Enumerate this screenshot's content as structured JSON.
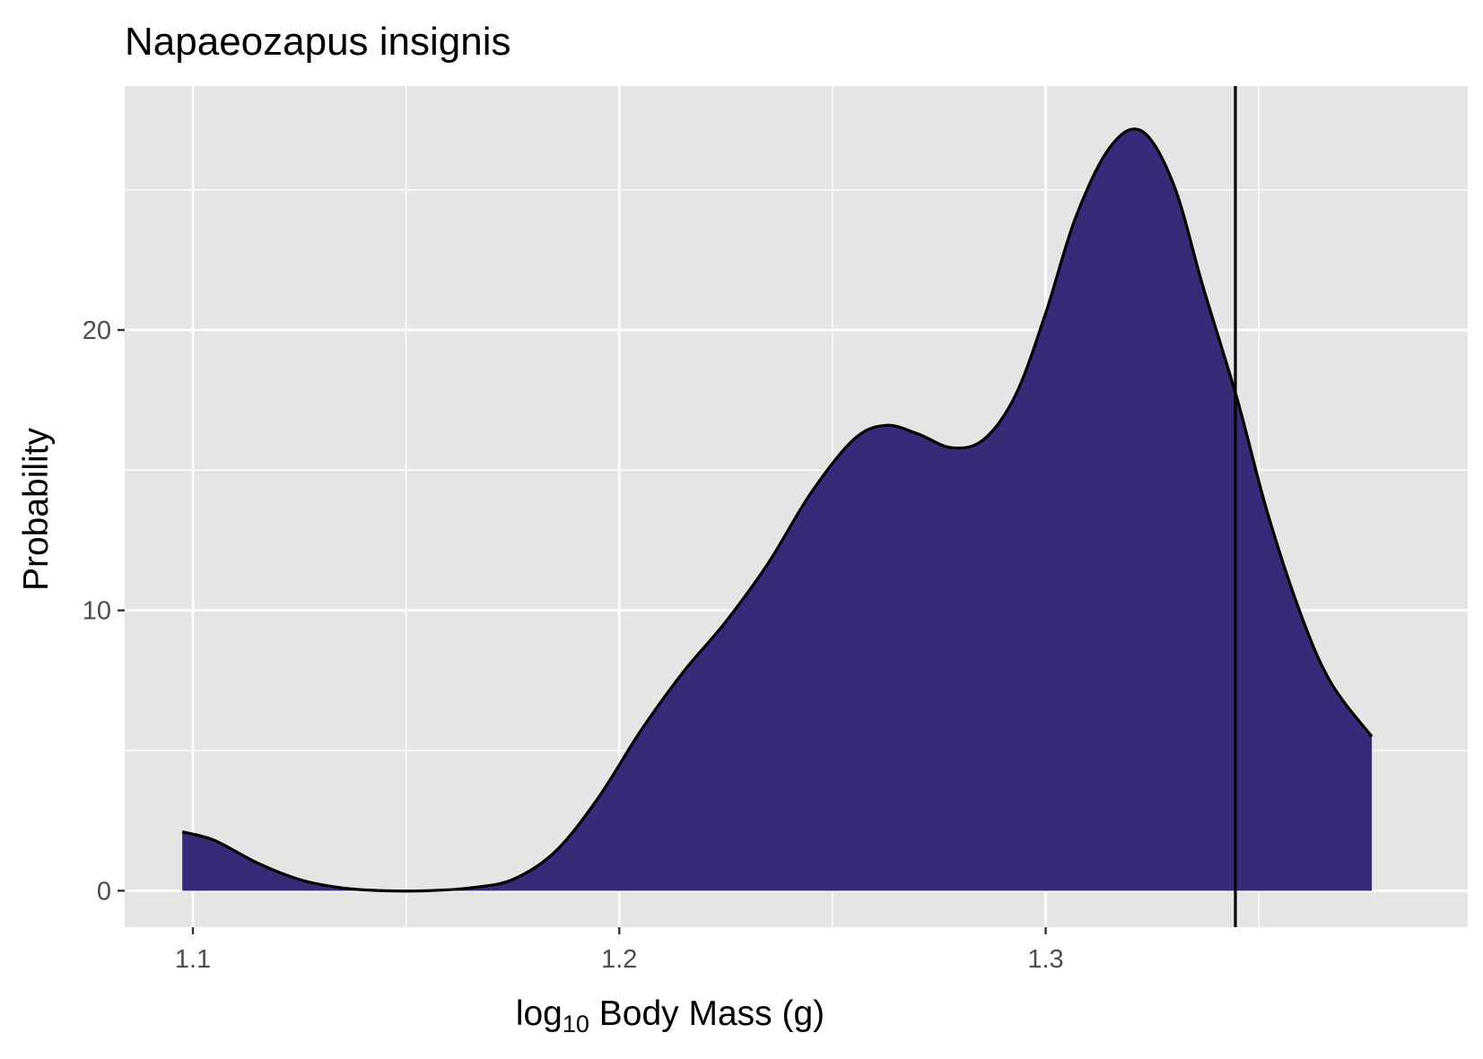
{
  "chart_data": {
    "type": "area",
    "title": "Napaeozapus insignis",
    "xlabel": {
      "prefix": "log",
      "subscript": "10",
      "suffix": " Body Mass (g)"
    },
    "ylabel": "Probability",
    "xlim": [
      1.084,
      1.399
    ],
    "ylim": [
      -1.3,
      28.7
    ],
    "x_ticks": [
      {
        "value": 1.1,
        "label": "1.1"
      },
      {
        "value": 1.2,
        "label": "1.2"
      },
      {
        "value": 1.3,
        "label": "1.3"
      }
    ],
    "y_ticks": [
      {
        "value": 0,
        "label": "0"
      },
      {
        "value": 10,
        "label": "10"
      },
      {
        "value": 20,
        "label": "20"
      }
    ],
    "x_minor": [
      1.15,
      1.25,
      1.35
    ],
    "y_minor": [
      5,
      15,
      25
    ],
    "grid": true,
    "fill_color": "#372a79",
    "line_color": "#000000",
    "panel_background": "#e5e5e5",
    "reference_line_x": 1.3445,
    "series": [
      {
        "x": [
          1.0975,
          1.105,
          1.115,
          1.125,
          1.135,
          1.145,
          1.155,
          1.165,
          1.175,
          1.185,
          1.195,
          1.205,
          1.215,
          1.225,
          1.235,
          1.245,
          1.255,
          1.2625,
          1.27,
          1.278,
          1.2855,
          1.293,
          1.3,
          1.307,
          1.315,
          1.3225,
          1.33,
          1.337,
          1.345,
          1.352,
          1.36,
          1.367,
          1.3765
        ],
        "y": [
          2.1,
          1.8,
          1.0,
          0.4,
          0.1,
          0.0,
          0.0,
          0.1,
          0.4,
          1.4,
          3.3,
          5.7,
          7.8,
          9.6,
          11.7,
          14.2,
          16.1,
          16.6,
          16.3,
          15.8,
          16.1,
          17.7,
          20.6,
          24.0,
          26.5,
          27.1,
          25.2,
          21.5,
          17.5,
          13.5,
          9.8,
          7.4,
          5.5
        ]
      }
    ]
  }
}
